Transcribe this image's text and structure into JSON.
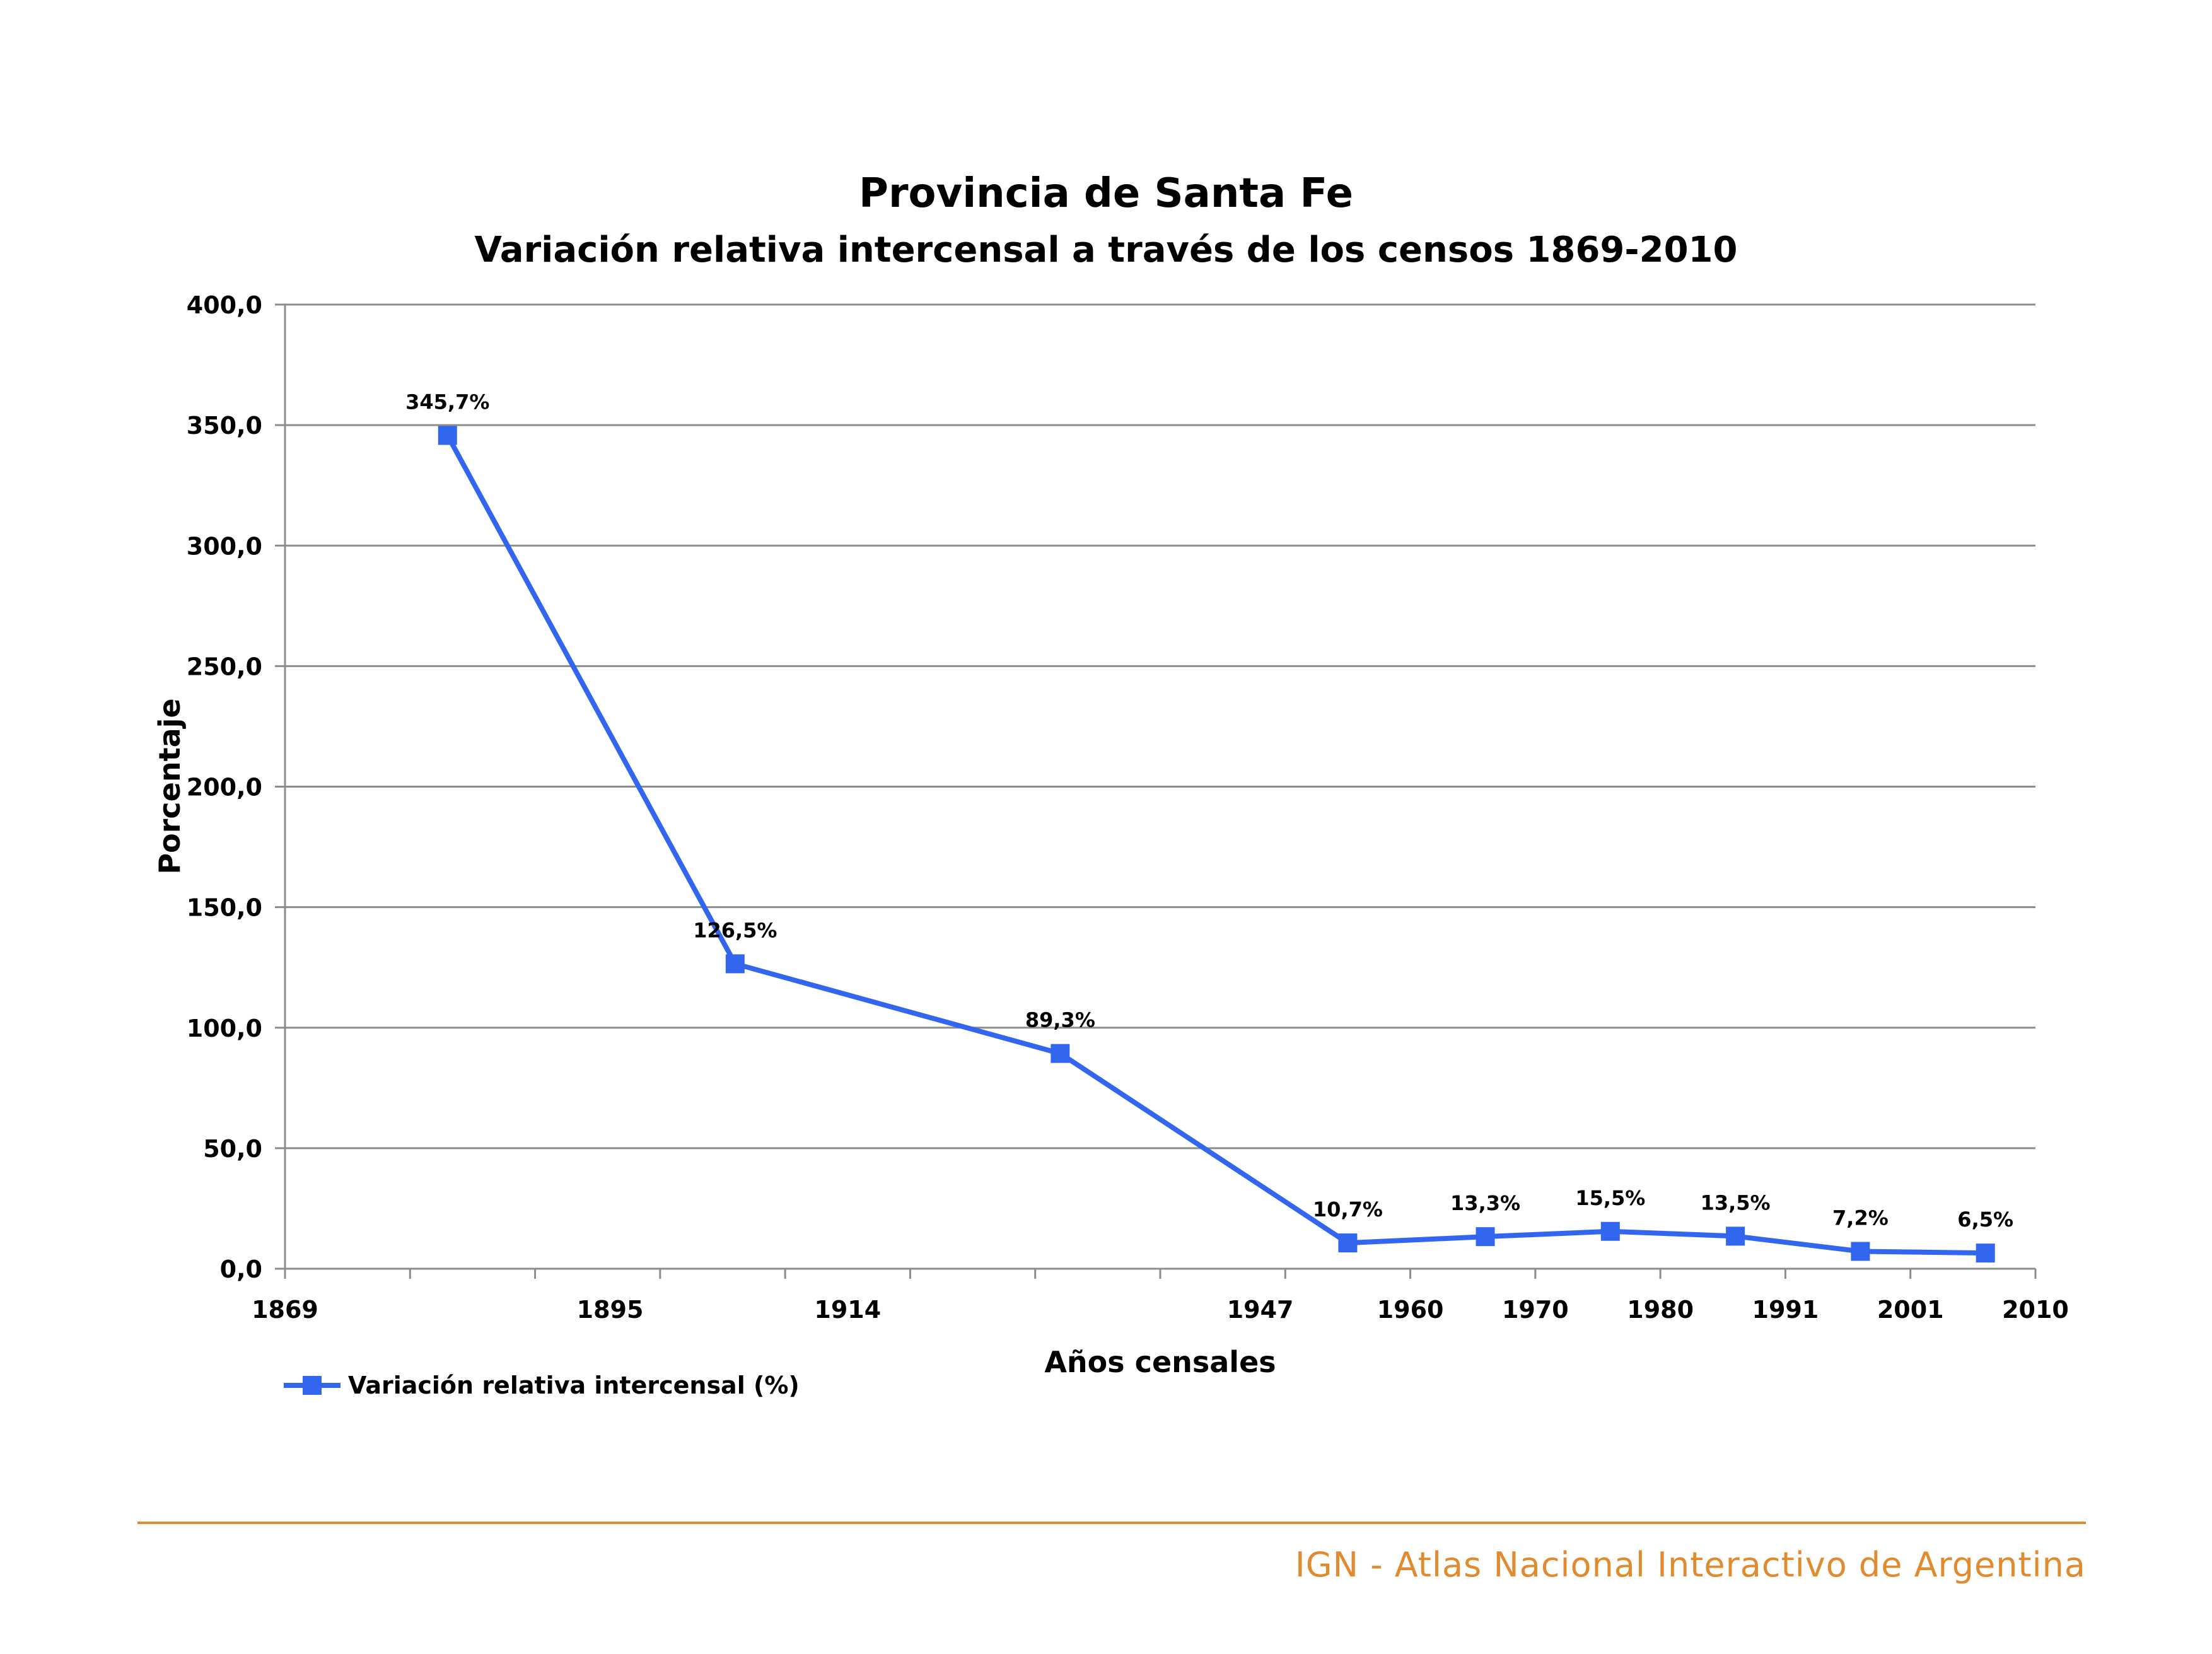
{
  "chart_data": {
    "type": "line",
    "title": "Provincia de Santa Fe",
    "subtitle": "Variación relativa intercensal a través de los censos 1869-2010",
    "xlabel": "Años censales",
    "ylabel": "Porcentaje",
    "ylim": [
      0,
      400
    ],
    "y_ticks": [
      "0,0",
      "50,0",
      "100,0",
      "150,0",
      "200,0",
      "250,0",
      "300,0",
      "350,0",
      "400,0"
    ],
    "x_ticks": [
      "1869",
      "1895",
      "1914",
      "1947",
      "1960",
      "1970",
      "1980",
      "1991",
      "2001",
      "2010"
    ],
    "grid": true,
    "legend_position": "bottom-left",
    "color": "#3366ee",
    "series": [
      {
        "name": "Variación relativa intercensal (%)",
        "values": [
          345.7,
          126.5,
          89.3,
          10.7,
          13.3,
          15.5,
          13.5,
          7.2,
          6.5
        ],
        "labels": [
          "345,7%",
          "126,5%",
          "89,3%",
          "10,7%",
          "13,3%",
          "15,5%",
          "13,5%",
          "7,2%",
          "6,5%"
        ]
      }
    ]
  },
  "footer": {
    "text": "IGN - Atlas Nacional Interactivo de Argentina",
    "color": "#e08b2f"
  }
}
